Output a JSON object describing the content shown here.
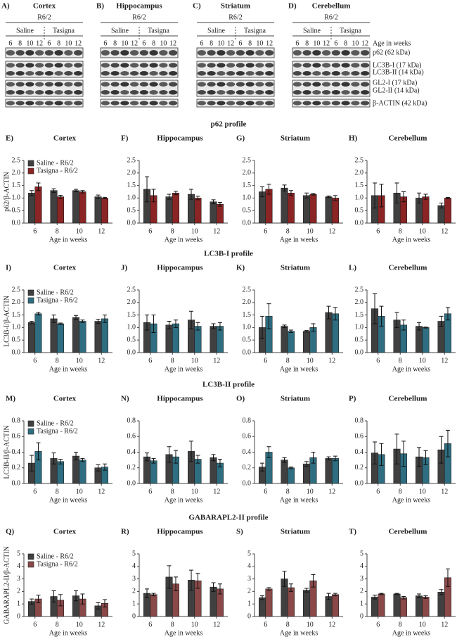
{
  "blots": {
    "panels": [
      {
        "letter": "A)",
        "title": "Cortex"
      },
      {
        "letter": "B)",
        "title": "Hippocampus"
      },
      {
        "letter": "C)",
        "title": "Striatum"
      },
      {
        "letter": "D)",
        "title": "Cerebellum"
      }
    ],
    "strain": "R6/2",
    "groups": [
      "Saline",
      "Tasigna"
    ],
    "ages": [
      "6",
      "8",
      "10",
      "12"
    ],
    "age_label": "Age in weeks",
    "bands": [
      "p62 (62 kDa)",
      "LC3B-I (17 kDa)",
      "LC3B-II (14 kDa)",
      "GL2-I (17 kDa)",
      "GL2-II (14 kDa)",
      "β-ACTIN (42 kDa)"
    ]
  },
  "sections": [
    "p62 profile",
    "LC3B-I profile",
    "LC3B-II profile",
    "GABARAPL2-II profile"
  ],
  "chart_data": [
    {
      "type": "bar",
      "panel": "E)",
      "title": "Cortex",
      "ylabel": "p62/β-ACTIN",
      "xlabel": "Age in weeks",
      "categories": [
        "6",
        "8",
        "10",
        "12"
      ],
      "legend": "upper left",
      "series": [
        {
          "name": "Saline - R6/2",
          "color": "#404040",
          "values": [
            1.2,
            1.3,
            1.3,
            1.05
          ],
          "errors": [
            0.1,
            0.07,
            0.05,
            0.07
          ]
        },
        {
          "name": "Tasigna - R6/2",
          "color": "#8b2525",
          "values": [
            1.45,
            1.05,
            1.25,
            1.0
          ],
          "errors": [
            0.15,
            0.06,
            0.05,
            0.03
          ]
        }
      ],
      "ylim": [
        0,
        2.5
      ],
      "yticks": [
        {
          "value": 0,
          "label": "0.0"
        },
        0.5,
        {
          "value": 1,
          "label": "1.0"
        },
        1.5,
        {
          "value": 2,
          "label": "2.0"
        },
        2.5
      ]
    },
    {
      "type": "bar",
      "panel": "F)",
      "title": "Hippocampus",
      "xlabel": "Age in weeks",
      "categories": [
        "6",
        "8",
        "10",
        "12"
      ],
      "series": [
        {
          "color": "#404040",
          "values": [
            1.35,
            1.05,
            1.15,
            0.85
          ],
          "errors": [
            0.5,
            0.1,
            0.2,
            0.08
          ]
        },
        {
          "color": "#8b2525",
          "values": [
            1.1,
            1.2,
            1.0,
            0.75
          ],
          "errors": [
            0.25,
            0.07,
            0.07,
            0.08
          ]
        }
      ],
      "ylim": [
        0,
        2.5
      ],
      "yticks": [
        {
          "value": 0,
          "label": "0.0"
        },
        0.5,
        {
          "value": 1,
          "label": "1.0"
        },
        1.5,
        {
          "value": 2,
          "label": "2.0"
        },
        2.5
      ]
    },
    {
      "type": "bar",
      "panel": "G)",
      "title": "Striatum",
      "xlabel": "Age in weeks",
      "categories": [
        "6",
        "8",
        "10",
        "12"
      ],
      "series": [
        {
          "color": "#404040",
          "values": [
            1.25,
            1.4,
            1.1,
            1.05
          ],
          "errors": [
            0.2,
            0.12,
            0.1,
            0.03
          ]
        },
        {
          "color": "#8b2525",
          "values": [
            1.35,
            1.2,
            1.15,
            1.0
          ],
          "errors": [
            0.2,
            0.1,
            0.03,
            0.1
          ]
        }
      ],
      "ylim": [
        0,
        2.5
      ],
      "yticks": [
        {
          "value": 0,
          "label": "0.0"
        },
        0.5,
        {
          "value": 1,
          "label": "1.0"
        },
        1.5,
        {
          "value": 2,
          "label": "2.0"
        },
        2.5
      ]
    },
    {
      "type": "bar",
      "panel": "H)",
      "title": "Cerebellum",
      "xlabel": "Age in weeks",
      "categories": [
        "6",
        "8",
        "10",
        "12"
      ],
      "series": [
        {
          "color": "#404040",
          "values": [
            1.1,
            1.2,
            1.0,
            0.7
          ],
          "errors": [
            0.5,
            0.4,
            0.2,
            0.1
          ]
        },
        {
          "color": "#8b2525",
          "values": [
            1.1,
            1.05,
            1.05,
            1.0
          ],
          "errors": [
            0.45,
            0.2,
            0.1,
            0.03
          ]
        }
      ],
      "ylim": [
        0,
        2.5
      ],
      "yticks": [
        {
          "value": 0,
          "label": "0.0"
        },
        0.5,
        {
          "value": 1,
          "label": "1.0"
        },
        1.5,
        {
          "value": 2,
          "label": "2.0"
        },
        2.5
      ]
    },
    {
      "type": "bar",
      "panel": "I)",
      "title": "Cortex",
      "ylabel": "LC3B-I/β-ACTIN",
      "xlabel": "Age in weeks",
      "categories": [
        "6",
        "8",
        "10",
        "12"
      ],
      "legend": "upper left",
      "series": [
        {
          "name": "Saline - R6/2",
          "color": "#404040",
          "values": [
            1.2,
            1.35,
            1.4,
            1.25
          ],
          "errors": [
            0.05,
            0.15,
            0.08,
            0.08
          ]
        },
        {
          "name": "Tasigna - R6/2",
          "color": "#2e6e80",
          "values": [
            1.55,
            1.15,
            1.25,
            1.35
          ],
          "errors": [
            0.05,
            0.03,
            0.05,
            0.15
          ]
        }
      ],
      "ylim": [
        0,
        2.5
      ],
      "yticks": [
        {
          "value": 0,
          "label": "0.0"
        },
        0.5,
        {
          "value": 1,
          "label": "1.0"
        },
        1.5,
        {
          "value": 2,
          "label": "2.0"
        },
        2.5
      ]
    },
    {
      "type": "bar",
      "panel": "J)",
      "title": "Hippocampus",
      "xlabel": "Age in weeks",
      "categories": [
        "6",
        "8",
        "10",
        "12"
      ],
      "series": [
        {
          "color": "#404040",
          "values": [
            1.2,
            1.1,
            1.3,
            1.05
          ],
          "errors": [
            0.3,
            0.15,
            0.35,
            0.1
          ]
        },
        {
          "color": "#2e6e80",
          "values": [
            1.15,
            1.15,
            1.05,
            1.05
          ],
          "errors": [
            0.35,
            0.15,
            0.15,
            0.15
          ]
        }
      ],
      "ylim": [
        0,
        2.5
      ],
      "yticks": [
        {
          "value": 0,
          "label": "0.0"
        },
        0.5,
        {
          "value": 1,
          "label": "1.0"
        },
        1.5,
        {
          "value": 2,
          "label": "2.0"
        },
        2.5
      ]
    },
    {
      "type": "bar",
      "panel": "K)",
      "title": "Striatum",
      "xlabel": "Age in weeks",
      "categories": [
        "6",
        "8",
        "10",
        "12"
      ],
      "series": [
        {
          "color": "#404040",
          "values": [
            1.0,
            1.05,
            0.85,
            1.6
          ],
          "errors": [
            0.45,
            0.05,
            0.03,
            0.25
          ]
        },
        {
          "color": "#2e6e80",
          "values": [
            1.45,
            0.85,
            1.0,
            1.55
          ],
          "errors": [
            0.5,
            0.05,
            0.15,
            0.25
          ]
        }
      ],
      "ylim": [
        0,
        2.5
      ],
      "yticks": [
        {
          "value": 0,
          "label": "0.0"
        },
        0.5,
        {
          "value": 1,
          "label": "1.0"
        },
        1.5,
        {
          "value": 2,
          "label": "2.0"
        },
        2.5
      ]
    },
    {
      "type": "bar",
      "panel": "L)",
      "title": "Cerebellum",
      "xlabel": "Age in weeks",
      "categories": [
        "6",
        "8",
        "10",
        "12"
      ],
      "series": [
        {
          "color": "#404040",
          "values": [
            1.75,
            1.3,
            1.05,
            1.25
          ],
          "errors": [
            0.6,
            0.3,
            0.15,
            0.2
          ]
        },
        {
          "color": "#2e6e80",
          "values": [
            1.45,
            1.1,
            1.0,
            1.55
          ],
          "errors": [
            0.4,
            0.2,
            0.02,
            0.25
          ]
        }
      ],
      "ylim": [
        0,
        2.5
      ],
      "yticks": [
        {
          "value": 0,
          "label": "0.0"
        },
        0.5,
        {
          "value": 1,
          "label": "1.0"
        },
        1.5,
        {
          "value": 2,
          "label": "2.0"
        },
        2.5
      ]
    },
    {
      "type": "bar",
      "panel": "M)",
      "title": "Cortex",
      "ylabel": "LC3B-II/β-ACTIN",
      "xlabel": "Age in weeks",
      "categories": [
        "6",
        "8",
        "10",
        "12"
      ],
      "legend": "upper left",
      "series": [
        {
          "name": "Saline - R6/2",
          "color": "#404040",
          "values": [
            0.26,
            0.32,
            0.35,
            0.2
          ],
          "errors": [
            0.1,
            0.07,
            0.05,
            0.04
          ]
        },
        {
          "name": "Tasigna - R6/2",
          "color": "#2e6e80",
          "values": [
            0.41,
            0.28,
            0.3,
            0.21
          ],
          "errors": [
            0.11,
            0.03,
            0.02,
            0.04
          ]
        }
      ],
      "ylim": [
        0,
        0.8
      ],
      "yticks": [
        {
          "value": 0,
          "label": "0.0"
        },
        0.2,
        0.4,
        0.6,
        0.8
      ]
    },
    {
      "type": "bar",
      "panel": "N)",
      "title": "Hippocampus",
      "xlabel": "Age in weeks",
      "categories": [
        "6",
        "8",
        "10",
        "12"
      ],
      "series": [
        {
          "color": "#404040",
          "values": [
            0.34,
            0.37,
            0.41,
            0.33
          ],
          "errors": [
            0.05,
            0.1,
            0.13,
            0.04
          ]
        },
        {
          "color": "#2e6e80",
          "values": [
            0.29,
            0.34,
            0.31,
            0.26
          ],
          "errors": [
            0.03,
            0.08,
            0.05,
            0.05
          ]
        }
      ],
      "ylim": [
        0,
        0.8
      ],
      "yticks": [
        {
          "value": 0,
          "label": "0.0"
        },
        0.2,
        0.4,
        0.6,
        0.8
      ]
    },
    {
      "type": "bar",
      "panel": "O)",
      "title": "Striatum",
      "xlabel": "Age in weeks",
      "categories": [
        "6",
        "8",
        "10",
        "12"
      ],
      "series": [
        {
          "color": "#404040",
          "values": [
            0.21,
            0.3,
            0.25,
            0.32
          ],
          "errors": [
            0.05,
            0.03,
            0.03,
            0.02
          ]
        },
        {
          "color": "#2e6e80",
          "values": [
            0.4,
            0.2,
            0.33,
            0.32
          ],
          "errors": [
            0.07,
            0.01,
            0.07,
            0.03
          ]
        }
      ],
      "ylim": [
        0,
        0.8
      ],
      "yticks": [
        {
          "value": 0,
          "label": "0.0"
        },
        0.2,
        0.4,
        0.6,
        0.8
      ]
    },
    {
      "type": "bar",
      "panel": "P)",
      "title": "Cerebellum",
      "xlabel": "Age in weeks",
      "categories": [
        "6",
        "8",
        "10",
        "12"
      ],
      "series": [
        {
          "color": "#404040",
          "values": [
            0.39,
            0.44,
            0.34,
            0.43
          ],
          "errors": [
            0.14,
            0.19,
            0.12,
            0.17
          ]
        },
        {
          "color": "#2e6e80",
          "values": [
            0.37,
            0.38,
            0.33,
            0.51
          ],
          "errors": [
            0.14,
            0.16,
            0.09,
            0.17
          ]
        }
      ],
      "ylim": [
        0,
        0.8
      ],
      "yticks": [
        {
          "value": 0,
          "label": "0.0"
        },
        0.2,
        0.4,
        0.6,
        0.8
      ]
    },
    {
      "type": "bar",
      "panel": "Q)",
      "title": "Cortex",
      "ylabel": "GABARAPL2-II/β-ACTIN",
      "xlabel": "Age in weeks",
      "categories": [
        "6",
        "8",
        "10",
        "12"
      ],
      "legend": "upper left",
      "series": [
        {
          "name": "Saline - R6/2",
          "color": "#404040",
          "values": [
            1.2,
            1.6,
            1.65,
            0.85
          ],
          "errors": [
            0.2,
            0.45,
            0.4,
            0.25
          ]
        },
        {
          "name": "Tasigna - R6/2",
          "color": "#8a4848",
          "values": [
            1.4,
            1.3,
            1.4,
            1.05
          ],
          "errors": [
            0.3,
            0.45,
            0.4,
            0.3
          ]
        }
      ],
      "ylim": [
        0,
        5
      ],
      "yticks": [
        0,
        1,
        2,
        3,
        4,
        5
      ]
    },
    {
      "type": "bar",
      "panel": "R)",
      "title": "Hippocampus",
      "xlabel": "Age in weeks",
      "categories": [
        "6",
        "8",
        "10",
        "12"
      ],
      "series": [
        {
          "color": "#404040",
          "values": [
            1.85,
            3.15,
            2.9,
            2.35
          ],
          "errors": [
            0.35,
            0.9,
            0.8,
            0.35
          ]
        },
        {
          "color": "#8a4848",
          "values": [
            1.75,
            2.6,
            2.85,
            2.2
          ],
          "errors": [
            0.1,
            0.55,
            0.6,
            0.4
          ]
        }
      ],
      "ylim": [
        0,
        5
      ],
      "yticks": [
        0,
        1,
        2,
        3,
        4,
        5
      ]
    },
    {
      "type": "bar",
      "panel": "S)",
      "title": "Striatum",
      "xlabel": "Age in weeks",
      "categories": [
        "6",
        "8",
        "10",
        "12"
      ],
      "series": [
        {
          "color": "#404040",
          "values": [
            1.5,
            3.0,
            2.1,
            1.6
          ],
          "errors": [
            0.15,
            0.6,
            0.15,
            0.25
          ]
        },
        {
          "color": "#8a4848",
          "values": [
            2.2,
            2.3,
            2.85,
            1.75
          ],
          "errors": [
            0.1,
            0.3,
            0.5,
            0.1
          ]
        }
      ],
      "ylim": [
        0,
        5
      ],
      "yticks": [
        0,
        1,
        2,
        3,
        4,
        5
      ]
    },
    {
      "type": "bar",
      "panel": "T)",
      "title": "Cerebellum",
      "xlabel": "Age in weeks",
      "categories": [
        "6",
        "8",
        "10",
        "12"
      ],
      "series": [
        {
          "color": "#404040",
          "values": [
            1.55,
            1.8,
            1.65,
            1.95
          ],
          "errors": [
            0.15,
            0.05,
            0.15,
            0.2
          ]
        },
        {
          "color": "#8a4848",
          "values": [
            1.8,
            1.5,
            1.55,
            3.1
          ],
          "errors": [
            0.05,
            0.1,
            0.1,
            0.7
          ]
        }
      ],
      "ylim": [
        0,
        5
      ],
      "yticks": [
        0,
        1,
        2,
        3,
        4,
        5
      ]
    }
  ]
}
